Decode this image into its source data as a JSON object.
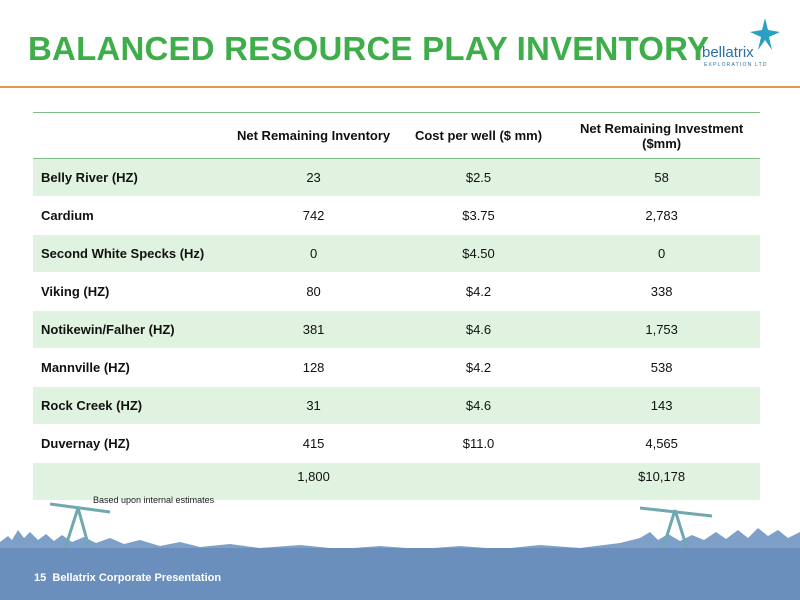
{
  "slide": {
    "title": "BALANCED RESOURCE PLAY INVENTORY",
    "footnote": "Based upon internal estimates",
    "page_number": "15",
    "footer_label": "Bellatrix Corporate Presentation"
  },
  "logo": {
    "name": "bellatrix",
    "tagline": "EXPLORATION LTD",
    "icon": "star-icon"
  },
  "colors": {
    "title": "#3dae4a",
    "rule": "#e8954a",
    "row_shade": "#e0f3e0",
    "footer": "#6b8fbd"
  },
  "table": {
    "headers": [
      "",
      "Net Remaining Inventory",
      "Cost per well ($ mm)",
      "Net Remaining Investment ($mm)"
    ],
    "rows": [
      {
        "label": "Belly River (HZ)",
        "inventory": "23",
        "cost": "$2.5",
        "investment": "58"
      },
      {
        "label": "Cardium",
        "inventory": "742",
        "cost": "$3.75",
        "investment": "2,783"
      },
      {
        "label": "Second White Specks (Hz)",
        "inventory": "0",
        "cost": "$4.50",
        "investment": "0"
      },
      {
        "label": "Viking (HZ)",
        "inventory": "80",
        "cost": "$4.2",
        "investment": "338"
      },
      {
        "label": "Notikewin/Falher (HZ)",
        "inventory": "381",
        "cost": "$4.6",
        "investment": "1,753"
      },
      {
        "label": "Mannville (HZ)",
        "inventory": "128",
        "cost": "$4.2",
        "investment": "538"
      },
      {
        "label": "Rock Creek (HZ)",
        "inventory": "31",
        "cost": "$4.6",
        "investment": "143"
      },
      {
        "label": "Duvernay (HZ)",
        "inventory": "415",
        "cost": "$11.0",
        "investment": "4,565"
      }
    ],
    "total": {
      "inventory": "1,800",
      "investment": "$10,178"
    }
  }
}
